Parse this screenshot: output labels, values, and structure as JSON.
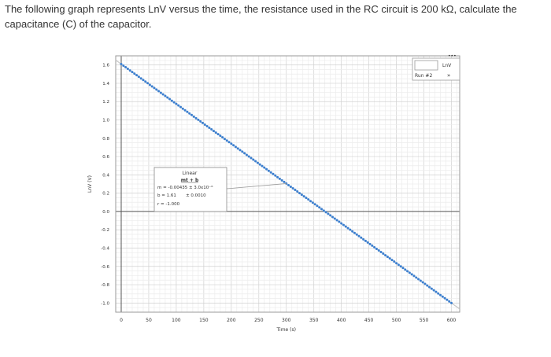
{
  "question": {
    "text": "The following graph represents LnV versus the time, the resistance used in the RC circuit is 200 kΩ, calculate the capacitance (C) of the capacitor."
  },
  "chart_data": {
    "type": "scatter",
    "xlabel": "Time (s)",
    "ylabel": "LnV (V)",
    "xlim": [
      -10,
      615
    ],
    "ylim": [
      -1.1,
      1.7
    ],
    "x_ticks": [
      0,
      50,
      100,
      150,
      200,
      250,
      300,
      350,
      400,
      450,
      500,
      550,
      600
    ],
    "y_ticks": [
      -1.0,
      -0.8,
      -0.6,
      -0.4,
      -0.2,
      0.0,
      0.2,
      0.4,
      0.6,
      0.8,
      1.0,
      1.2,
      1.4,
      1.6
    ],
    "x_tick_labels": [
      "0",
      "50",
      "100",
      "150",
      "200",
      "250",
      "300",
      "350",
      "400",
      "450",
      "500",
      "550",
      "600"
    ],
    "y_tick_labels": [
      "-1.0",
      "-0.8",
      "-0.6",
      "-0.4",
      "-0.2",
      "0.0",
      "0.2",
      "0.4",
      "0.6",
      "0.8",
      "1.0",
      "1.2",
      "1.4",
      "1.6"
    ],
    "grid": true,
    "series": [
      {
        "x_start": 0,
        "x_end": 600,
        "x_step": 4,
        "color": "#3b7fd0"
      }
    ],
    "fit": {
      "slope": -0.00435,
      "intercept": 1.61,
      "title": "Linear",
      "formula": "mt + b",
      "m_line": "m = -0.00435 ± 3.0x10⁻⁶",
      "b_line": "b = 1.61       ± 0.0010",
      "r_line": "r = -1.000",
      "anchor_x": 300
    },
    "legend": {
      "placement": "top-right",
      "label": "LnV",
      "run": "Run #2",
      "arrow": "»"
    }
  }
}
